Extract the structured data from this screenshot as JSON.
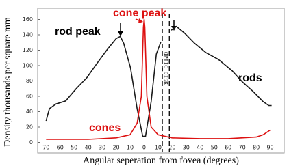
{
  "chart_data": {
    "type": "line",
    "y_label": "Density thousands per square mm",
    "x_label": "Angular seperation from fovea (degrees)",
    "xlim": [
      -76,
      100
    ],
    "ylim": [
      -12,
      172
    ],
    "xticks": [
      {
        "value": -70,
        "label": "70"
      },
      {
        "value": -60,
        "label": "60"
      },
      {
        "value": -50,
        "label": "50"
      },
      {
        "value": -40,
        "label": "40"
      },
      {
        "value": -30,
        "label": "30"
      },
      {
        "value": -20,
        "label": "20"
      },
      {
        "value": -10,
        "label": "10"
      },
      0,
      10,
      20,
      30,
      40,
      50,
      60,
      70,
      80,
      90
    ],
    "yticks": [
      0,
      20,
      40,
      60,
      80,
      100,
      120,
      140,
      160
    ],
    "series": [
      {
        "name": "rods",
        "color": "#1a1a1a",
        "x": [
          -70,
          -67.6,
          -63,
          -56,
          -48.5,
          -41,
          -34,
          -26.7,
          -20,
          -17,
          -14.6,
          -9.7,
          -5,
          -1,
          1,
          5,
          8.7,
          12,
          15,
          19.4,
          23,
          29,
          36,
          44,
          53,
          63,
          70,
          78,
          85,
          89,
          91
        ],
        "values": [
          28,
          44,
          50,
          54,
          70,
          84,
          102,
          120,
          135,
          138,
          129,
          97,
          44,
          8,
          8,
          53,
          115,
          131,
          null,
          146,
          151,
          142,
          129,
          117,
          108,
          93,
          79,
          66,
          53,
          48,
          48
        ]
      },
      {
        "name": "cones",
        "color": "#dd1111",
        "x": [
          -70,
          -40,
          -20,
          -10,
          -5,
          -2,
          -0.5,
          0,
          0.5,
          2,
          5,
          10,
          20,
          40,
          60,
          80,
          85,
          90
        ],
        "values": [
          4,
          4,
          6,
          10,
          25,
          60,
          150,
          160,
          150,
          60,
          20,
          10,
          6,
          5,
          5,
          7,
          10,
          16
        ]
      }
    ],
    "annotations": {
      "rod_peak": "rod peak",
      "cone_peak": "cone peak"
    },
    "optic_disk": {
      "label": "OPTIC_DISK",
      "range": [
        13,
        18
      ]
    }
  }
}
